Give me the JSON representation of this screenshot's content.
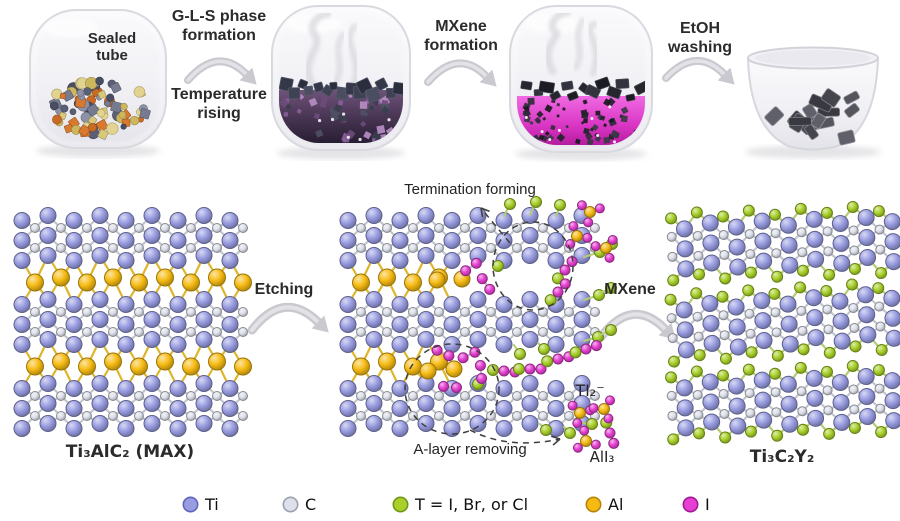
{
  "process": {
    "vessel1_label": "Sealed tube",
    "steps": [
      {
        "label": "G-L-S phase formation",
        "sublabel": "Temperature rising"
      },
      {
        "label": "MXene formation"
      },
      {
        "label": "EtOH washing"
      }
    ]
  },
  "reaction": {
    "max_label": "Ti₃AlC₂ (MAX)",
    "product_label": "Ti₃C₂Y₂",
    "etching_arrow": "Etching",
    "mxene_arrow": "MXene",
    "termination_note": "Termination forming",
    "alayer_note": "A-layer removing",
    "ti2_formula": "TI₂⁻",
    "ali3_formula": "AlI₃"
  },
  "legend": {
    "items": [
      {
        "key": "Ti",
        "label": "Ti",
        "color": "#989ce0",
        "border": "#5f65bd"
      },
      {
        "key": "C",
        "label": "C",
        "color": "#dde0ea",
        "border": "#9aa0ac"
      },
      {
        "key": "T",
        "label": "T = I, Br, or Cl",
        "color": "#a8d029",
        "border": "#6f9715"
      },
      {
        "key": "Al",
        "label": "Al",
        "color": "#f6bb13",
        "border": "#b5830a"
      },
      {
        "key": "I",
        "label": "I",
        "color": "#e640d2",
        "border": "#a01894"
      }
    ]
  },
  "palette": {
    "bond_default": "#c2c5ce",
    "bond_ti": "#a9ade0",
    "bond_al": "#ddb62b",
    "bond_t": "#b4cc72",
    "glass_stroke": "#d6d6dd",
    "arrow": "#c9c9cf",
    "annotation": "#3f3f3f",
    "liquid_purple_top": "#6f5379",
    "liquid_purple_bottom": "#221a2d",
    "liquid_magenta_top": "#f06ae2",
    "liquid_magenta_bottom": "#ad1496",
    "flake": "#4a4a54"
  }
}
